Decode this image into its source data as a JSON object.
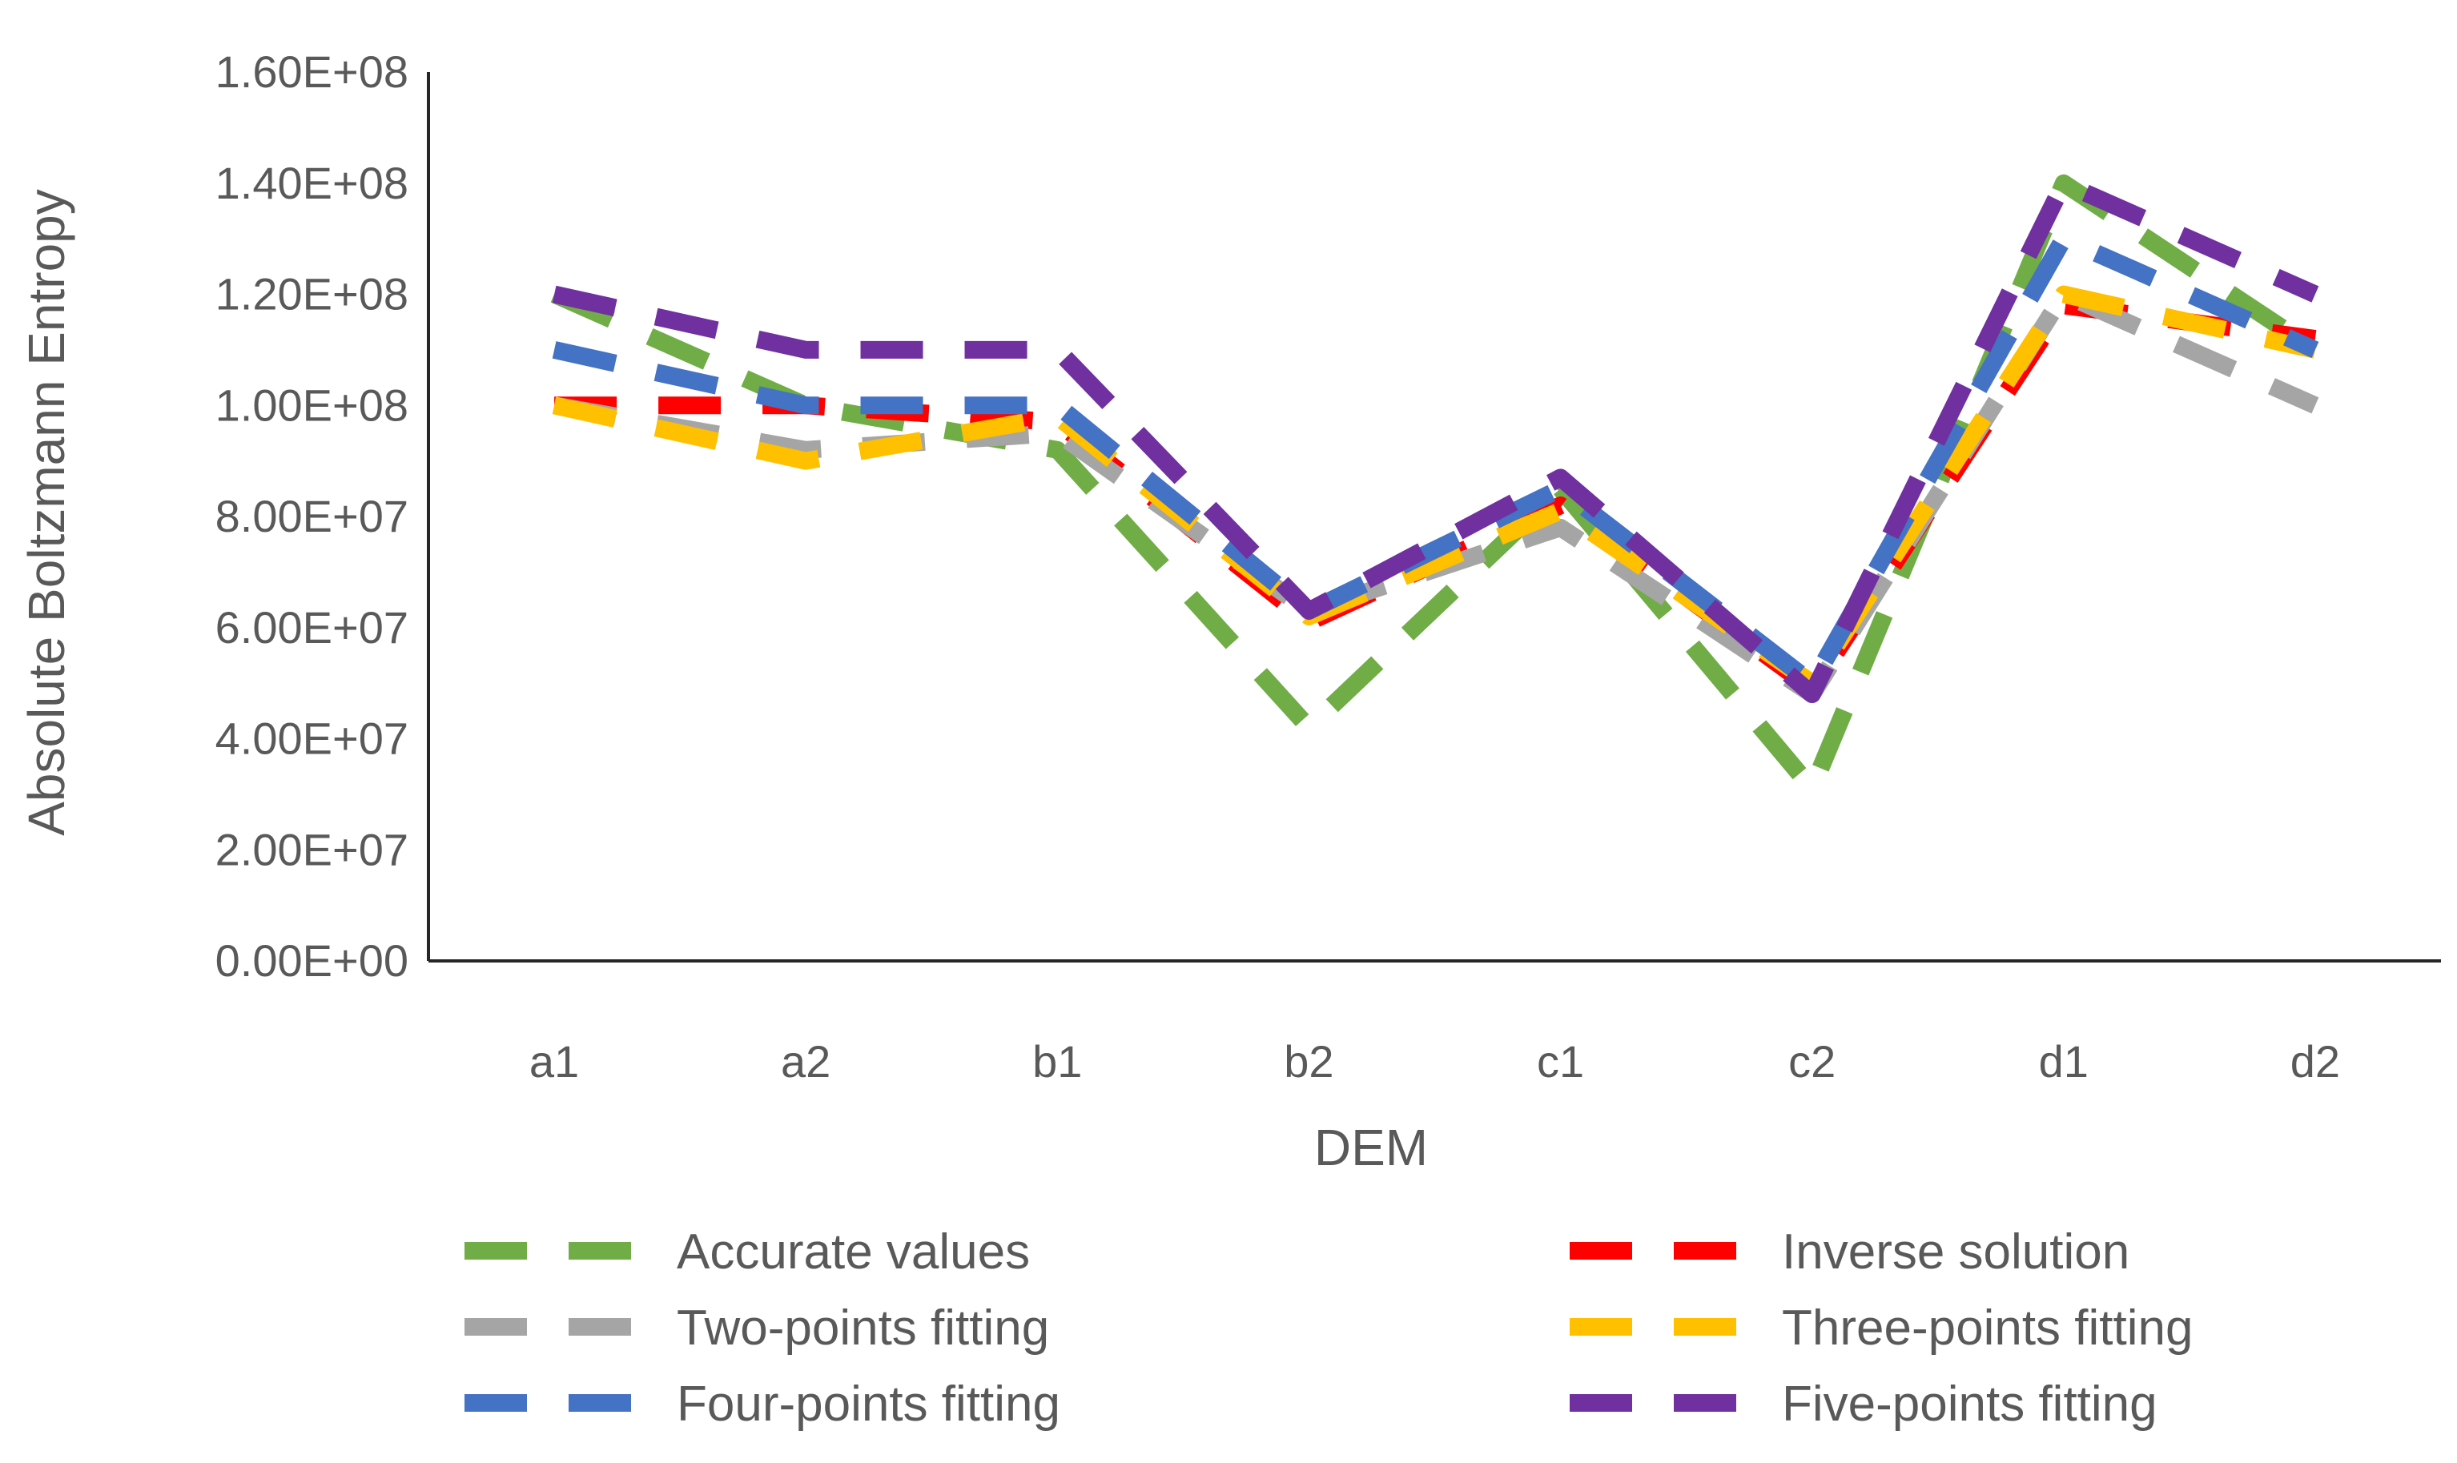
{
  "chart_data": {
    "type": "line",
    "title": "",
    "xlabel": "DEM",
    "ylabel": "Absolute Boltzmann Entropy",
    "categories": [
      "a1",
      "a2",
      "b1",
      "b2",
      "c1",
      "c2",
      "d1",
      "d2"
    ],
    "ylim": [
      0,
      160000000
    ],
    "yticks": [
      {
        "value": 0,
        "label": "0.00E+00"
      },
      {
        "value": 20000000,
        "label": "2.00E+07"
      },
      {
        "value": 40000000,
        "label": "4.00E+07"
      },
      {
        "value": 60000000,
        "label": "6.00E+07"
      },
      {
        "value": 80000000,
        "label": "8.00E+07"
      },
      {
        "value": 100000000,
        "label": "1.00E+08"
      },
      {
        "value": 120000000,
        "label": "1.20E+08"
      },
      {
        "value": 140000000,
        "label": "1.40E+08"
      },
      {
        "value": 160000000,
        "label": "1.60E+08"
      }
    ],
    "grid": false,
    "legend_position": "bottom",
    "series": [
      {
        "name": "Accurate values",
        "color": "#70AD47",
        "values": [
          120000000,
          100000000,
          92000000,
          42000000,
          85000000,
          31000000,
          140000000,
          110000000
        ]
      },
      {
        "name": "Inverse solution",
        "color": "#FF0000",
        "values": [
          100000000,
          100000000,
          97000000,
          61000000,
          82000000,
          49000000,
          118000000,
          112000000
        ]
      },
      {
        "name": "Two-points fitting",
        "color": "#A5A5A5",
        "values": [
          100000000,
          92000000,
          95000000,
          63000000,
          78000000,
          48000000,
          120000000,
          100000000
        ]
      },
      {
        "name": "Three-points fitting",
        "color": "#FFC000",
        "values": [
          100000000,
          90000000,
          98000000,
          62000000,
          81000000,
          50000000,
          120000000,
          110000000
        ]
      },
      {
        "name": "Four-points fitting",
        "color": "#4472C4",
        "values": [
          110000000,
          100000000,
          100000000,
          63000000,
          85000000,
          50000000,
          130000000,
          110000000
        ]
      },
      {
        "name": "Five-points fitting",
        "color": "#7030A0",
        "values": [
          120000000,
          110000000,
          110000000,
          63000000,
          87000000,
          48000000,
          140000000,
          120000000
        ]
      }
    ]
  }
}
